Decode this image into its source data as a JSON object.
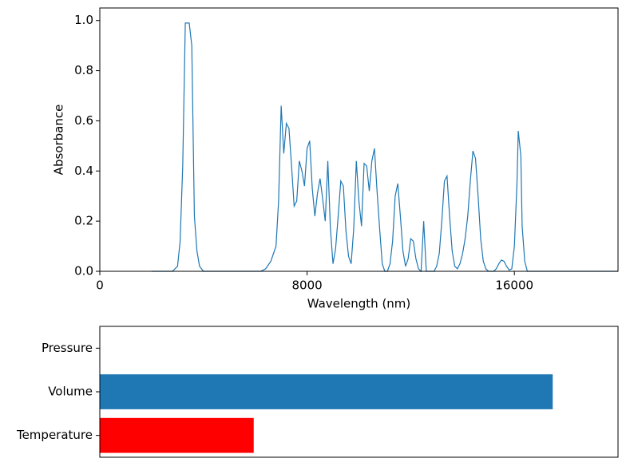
{
  "chart_data": [
    {
      "type": "line",
      "xlabel": "Wavelength (nm)",
      "ylabel": "Absorbance",
      "xlim": [
        0,
        20000
      ],
      "xticks": [
        0,
        8000,
        16000
      ],
      "ylim": [
        0,
        1.05
      ],
      "yticks": [
        {
          "value": 0,
          "label": "0.0"
        },
        0.2,
        0.4,
        0.6,
        0.8,
        {
          "value": 1,
          "label": "1.0"
        }
      ],
      "series": [
        {
          "color": "#1f77b4",
          "x": [
            2000,
            2800,
            3000,
            3100,
            3200,
            3300,
            3450,
            3550,
            3650,
            3750,
            3850,
            4000,
            6200,
            6400,
            6600,
            6800,
            6900,
            7000,
            7100,
            7200,
            7300,
            7400,
            7500,
            7600,
            7700,
            7800,
            7900,
            8000,
            8100,
            8200,
            8300,
            8400,
            8500,
            8600,
            8700,
            8800,
            8900,
            9000,
            9100,
            9200,
            9300,
            9400,
            9500,
            9600,
            9700,
            9800,
            9900,
            10000,
            10100,
            10200,
            10300,
            10400,
            10500,
            10600,
            10700,
            10800,
            10900,
            11000,
            11100,
            11200,
            11300,
            11400,
            11500,
            11600,
            11700,
            11800,
            11900,
            12000,
            12100,
            12200,
            12300,
            12400,
            12500,
            12600,
            12700,
            12900,
            13000,
            13100,
            13200,
            13300,
            13400,
            13500,
            13600,
            13700,
            13800,
            13900,
            14000,
            14100,
            14200,
            14300,
            14400,
            14500,
            14600,
            14700,
            14800,
            14900,
            15000,
            15200,
            15300,
            15400,
            15500,
            15600,
            15700,
            15800,
            15900,
            16000,
            16100,
            16150,
            16250,
            16300,
            16400,
            16500,
            20000
          ],
          "values": [
            0,
            0,
            0.02,
            0.12,
            0.42,
            0.99,
            0.99,
            0.9,
            0.22,
            0.08,
            0.02,
            0,
            0,
            0.01,
            0.04,
            0.1,
            0.28,
            0.66,
            0.47,
            0.59,
            0.57,
            0.42,
            0.26,
            0.28,
            0.44,
            0.4,
            0.34,
            0.49,
            0.52,
            0.33,
            0.22,
            0.31,
            0.37,
            0.29,
            0.2,
            0.44,
            0.17,
            0.03,
            0.09,
            0.22,
            0.36,
            0.34,
            0.16,
            0.06,
            0.03,
            0.17,
            0.44,
            0.28,
            0.18,
            0.43,
            0.42,
            0.32,
            0.44,
            0.49,
            0.32,
            0.17,
            0.03,
            0,
            0,
            0.03,
            0.12,
            0.3,
            0.35,
            0.22,
            0.08,
            0.02,
            0.05,
            0.13,
            0.12,
            0.05,
            0.01,
            0,
            0.2,
            0,
            0,
            0,
            0.02,
            0.07,
            0.2,
            0.36,
            0.38,
            0.22,
            0.08,
            0.02,
            0.01,
            0.03,
            0.07,
            0.13,
            0.22,
            0.36,
            0.48,
            0.45,
            0.3,
            0.13,
            0.04,
            0.01,
            0,
            0,
            0.01,
            0.03,
            0.045,
            0.04,
            0.02,
            0.005,
            0.01,
            0.1,
            0.35,
            0.56,
            0.46,
            0.18,
            0.04,
            0,
            0
          ]
        }
      ]
    },
    {
      "type": "barh",
      "categories": [
        "Pressure",
        "Volume",
        "Temperature"
      ],
      "values": [
        0,
        0.874,
        0.297
      ],
      "colors": [
        "#1f77b4",
        "#1f77b4",
        "#ff0000"
      ],
      "xlim": [
        0,
        1
      ]
    }
  ]
}
